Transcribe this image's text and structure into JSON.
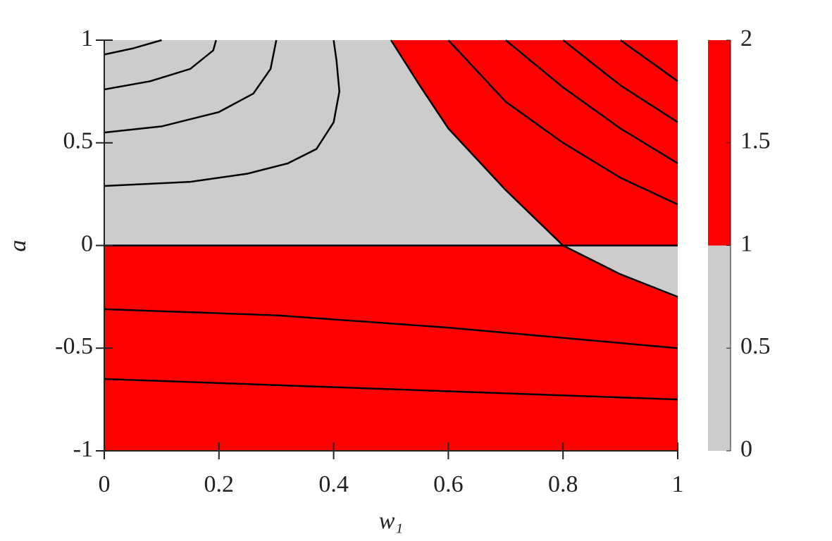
{
  "chart_data": {
    "type": "contour",
    "xlabel": "w₁",
    "ylabel": "a",
    "xlim": [
      0,
      1
    ],
    "ylim": [
      -1,
      1
    ],
    "xticks": [
      0,
      0.2,
      0.4,
      0.6,
      0.8,
      1
    ],
    "yticks": [
      -1,
      -0.5,
      0,
      0.5,
      1
    ],
    "regions": [
      {
        "color": "#ff0000",
        "x": [
          0,
          1,
          1,
          0
        ],
        "y": [
          -1,
          -1,
          1,
          1
        ]
      },
      {
        "color": "#cccccc",
        "x": [
          0,
          0,
          0.5,
          0.55,
          0.6,
          0.7,
          0.8
        ],
        "y": [
          0,
          1,
          1,
          0.78,
          0.57,
          0.27,
          0
        ]
      },
      {
        "color": "#cccccc",
        "x": [
          0.8,
          0.9,
          1,
          1
        ],
        "y": [
          0,
          -0.14,
          -0.25,
          0
        ]
      }
    ],
    "line_color": "#000000",
    "contours": [
      {
        "x": [
          0,
          0.05,
          0.1
        ],
        "y": [
          0.93,
          0.96,
          1
        ]
      },
      {
        "x": [
          0,
          0.08,
          0.15,
          0.19,
          0.195
        ],
        "y": [
          0.76,
          0.8,
          0.86,
          0.95,
          1
        ]
      },
      {
        "x": [
          0,
          0.1,
          0.2,
          0.26,
          0.29,
          0.3
        ],
        "y": [
          0.55,
          0.58,
          0.65,
          0.74,
          0.86,
          1
        ]
      },
      {
        "x": [
          0,
          0.15,
          0.25,
          0.32,
          0.37,
          0.4,
          0.41,
          0.405,
          0.4
        ],
        "y": [
          0.29,
          0.31,
          0.35,
          0.4,
          0.47,
          0.6,
          0.75,
          0.9,
          1
        ]
      },
      {
        "x": [
          0.5,
          0.55,
          0.6,
          0.7,
          0.8,
          0.9,
          1
        ],
        "y": [
          1,
          0.78,
          0.57,
          0.27,
          0,
          -0.14,
          -0.25
        ]
      },
      {
        "x": [
          0.6,
          0.7,
          0.8,
          0.9,
          1
        ],
        "y": [
          1,
          0.7,
          0.5,
          0.33,
          0.2
        ]
      },
      {
        "x": [
          0.7,
          0.8,
          0.9,
          1
        ],
        "y": [
          1,
          0.77,
          0.57,
          0.4
        ]
      },
      {
        "x": [
          0.8,
          0.9,
          1
        ],
        "y": [
          1,
          0.78,
          0.6
        ]
      },
      {
        "x": [
          0.9,
          0.95,
          1
        ],
        "y": [
          1,
          0.9,
          0.8
        ]
      },
      {
        "x": [
          0,
          1
        ],
        "y": [
          0,
          0
        ]
      },
      {
        "x": [
          0,
          0.3,
          0.6,
          0.8,
          1
        ],
        "y": [
          -0.31,
          -0.34,
          -0.4,
          -0.45,
          -0.5
        ]
      },
      {
        "x": [
          0,
          0.5,
          1
        ],
        "y": [
          -0.65,
          -0.7,
          -0.75
        ]
      }
    ],
    "colorbar": {
      "lim": [
        0,
        2
      ],
      "ticks": [
        0,
        0.5,
        1,
        1.5,
        2
      ],
      "colors": [
        "#cccccc",
        "#ff0000"
      ]
    }
  }
}
